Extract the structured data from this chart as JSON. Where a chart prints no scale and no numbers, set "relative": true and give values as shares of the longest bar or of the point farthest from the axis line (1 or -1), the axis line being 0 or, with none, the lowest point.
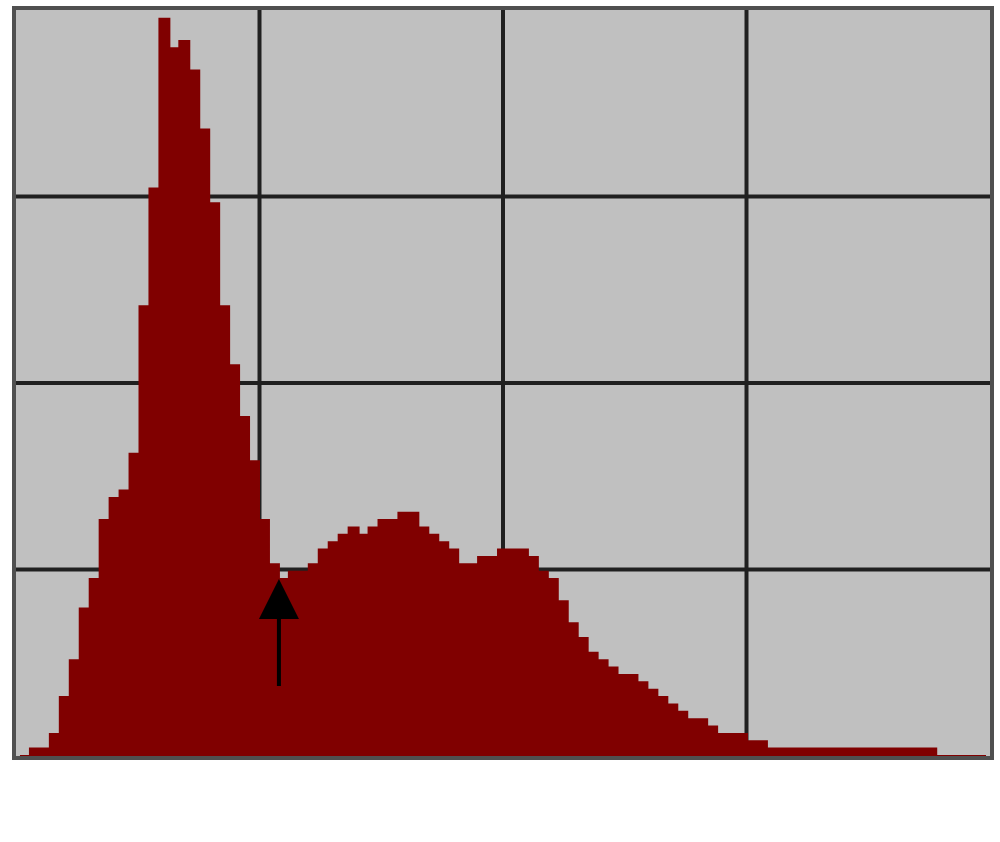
{
  "chart_data": {
    "type": "area",
    "relative": true,
    "color": "#800000",
    "grid": true,
    "categories": [
      null,
      null,
      null,
      null,
      null,
      null,
      null,
      null,
      null,
      null,
      null,
      null,
      null,
      null,
      null,
      null,
      null,
      null,
      null,
      null,
      null,
      null,
      null,
      null,
      null,
      null,
      null,
      null,
      null,
      null,
      null,
      null,
      null,
      null,
      null,
      null,
      null,
      null,
      null,
      null,
      null,
      null,
      null,
      null,
      null,
      null,
      null,
      null,
      null,
      null,
      null,
      null,
      null,
      null,
      null,
      null,
      null,
      null,
      null,
      null,
      null,
      null,
      null,
      null,
      null,
      null,
      null,
      null,
      null,
      null,
      null,
      null,
      null,
      null,
      null,
      null,
      null,
      null,
      null,
      null,
      null,
      null,
      null,
      null,
      null,
      null,
      null,
      null,
      null,
      null,
      null,
      null,
      null,
      null,
      null,
      null,
      null,
      null
    ],
    "values": [
      0,
      0.01,
      0.01,
      0.03,
      0.08,
      0.13,
      0.2,
      0.24,
      0.32,
      0.35,
      0.36,
      0.41,
      0.61,
      0.77,
      1.0,
      0.96,
      0.97,
      0.93,
      0.85,
      0.75,
      0.61,
      0.53,
      0.46,
      0.4,
      0.32,
      0.26,
      0.24,
      0.25,
      0.25,
      0.26,
      0.28,
      0.29,
      0.3,
      0.31,
      0.3,
      0.31,
      0.32,
      0.32,
      0.33,
      0.33,
      0.31,
      0.3,
      0.29,
      0.28,
      0.26,
      0.26,
      0.27,
      0.27,
      0.28,
      0.28,
      0.28,
      0.27,
      0.25,
      0.24,
      0.21,
      0.18,
      0.16,
      0.14,
      0.13,
      0.12,
      0.11,
      0.11,
      0.1,
      0.09,
      0.08,
      0.07,
      0.06,
      0.05,
      0.05,
      0.04,
      0.03,
      0.03,
      0.03,
      0.02,
      0.02,
      0.01,
      0.01,
      0.01,
      0.01,
      0.01,
      0.01,
      0.01,
      0.01,
      0.01,
      0.01,
      0.01,
      0.01,
      0.01,
      0.01,
      0.01,
      0.01,
      0.01,
      0,
      0,
      0,
      0,
      0,
      0
    ]
  }
}
